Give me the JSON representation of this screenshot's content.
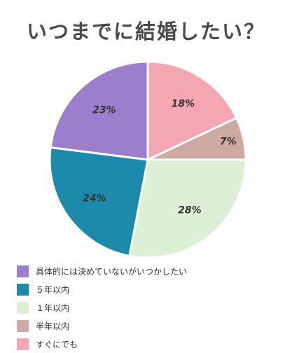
{
  "title": "いつまでに結婚したい？",
  "chart_data": {
    "type": "pie",
    "title": "いつまでに結婚したい？",
    "start_angle_deg": 0,
    "direction": "clockwise",
    "legend_position": "bottom-left",
    "slices": [
      {
        "label": "すぐにでも",
        "value": 18,
        "display": "18%",
        "color": "#f4a6b3"
      },
      {
        "label": "半年以内",
        "value": 7,
        "display": "7%",
        "color": "#cfaaa3"
      },
      {
        "label": "１年以内",
        "value": 28,
        "display": "28%",
        "color": "#ddf0d5"
      },
      {
        "label": "５年以内",
        "value": 24,
        "display": "24%",
        "color": "#1d89ab"
      },
      {
        "label": "具体的には決めていないがいつかしたい",
        "value": 23,
        "display": "23%",
        "color": "#9b7fcd"
      }
    ],
    "legend": [
      {
        "label": "具体的には決めていないがいつかしたい",
        "color": "#9b7fcd"
      },
      {
        "label": "５年以内",
        "color": "#1d89ab"
      },
      {
        "label": "１年以内",
        "color": "#ddf0d5"
      },
      {
        "label": "半年以内",
        "color": "#cfaaa3"
      },
      {
        "label": "すぐにでも",
        "color": "#f4a6b3"
      }
    ]
  }
}
